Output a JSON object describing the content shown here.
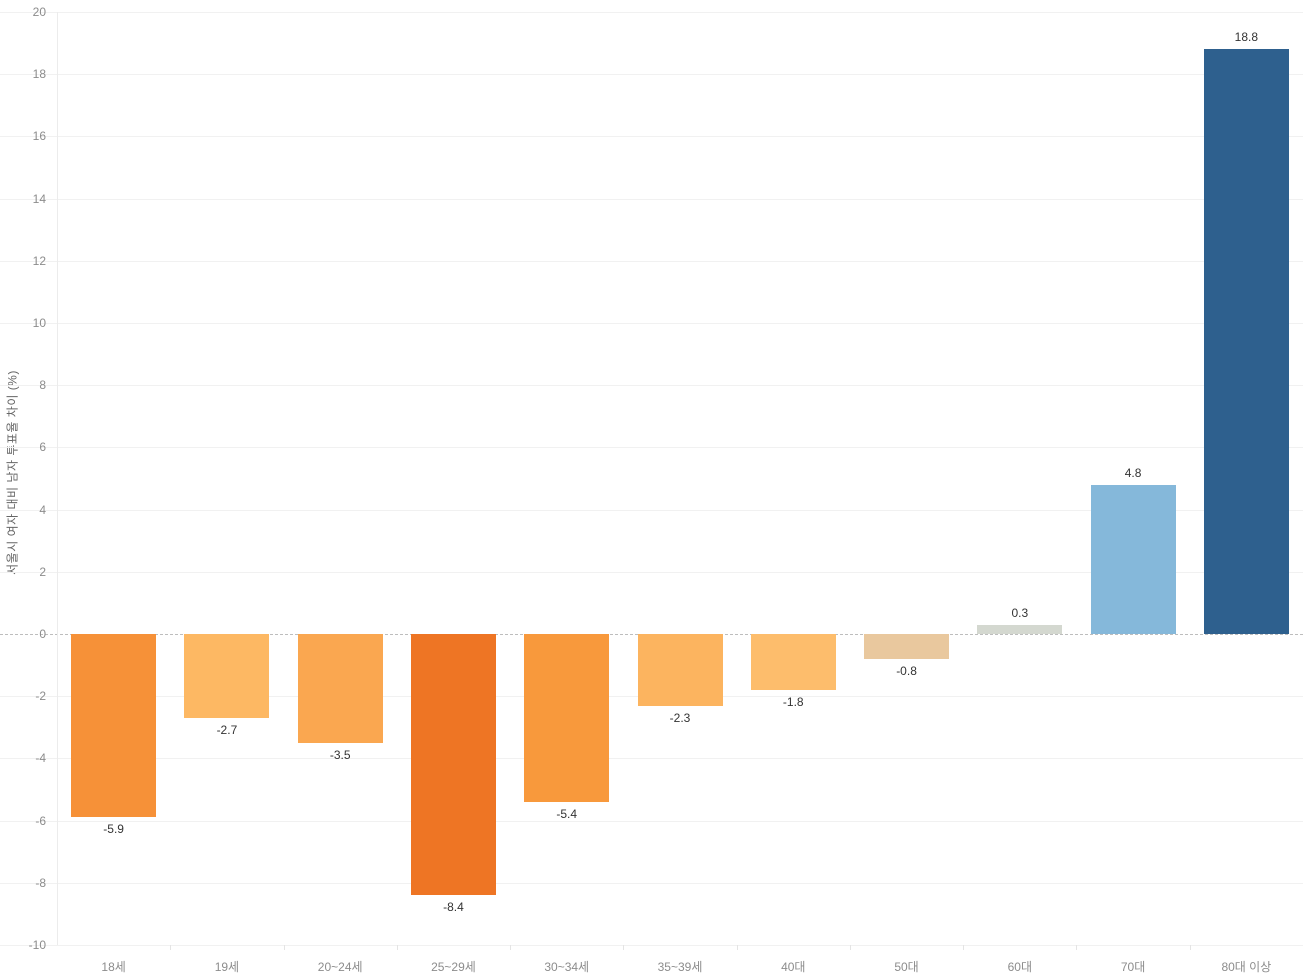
{
  "chart_data": {
    "type": "bar",
    "title": "",
    "xlabel": "",
    "ylabel": "서울시 여자 대비 남자 투표율 차이 (%)",
    "categories": [
      "18세",
      "19세",
      "20~24세",
      "25~29세",
      "30~34세",
      "35~39세",
      "40대",
      "50대",
      "60대",
      "70대",
      "80대 이상"
    ],
    "values": [
      -5.9,
      -2.7,
      -3.5,
      -8.4,
      -5.4,
      -2.3,
      -1.8,
      -0.8,
      0.3,
      4.8,
      18.8
    ],
    "data_labels": [
      "-5.9",
      "-2.7",
      "-3.5",
      "-8.4",
      "-5.4",
      "-2.3",
      "-1.8",
      "-0.8",
      "0.3",
      "4.8",
      "18.8"
    ],
    "bar_colors": [
      "#f69138",
      "#fdb863",
      "#faa750",
      "#ee7524",
      "#f8993c",
      "#fcb45f",
      "#fdbd6c",
      "#e9c89e",
      "#d4d8d0",
      "#85b8da",
      "#2e608e"
    ],
    "ylim": [
      -10,
      20
    ],
    "ytick_step": 2,
    "yticks": [
      -10,
      -8,
      -6,
      -4,
      -2,
      0,
      2,
      4,
      6,
      8,
      10,
      12,
      14,
      16,
      18,
      20
    ],
    "grid": true,
    "zero_line": "dashed",
    "legend_position": "none"
  },
  "style_colors": {
    "background": "#ffffff",
    "gridline": "#f1f1f1",
    "zero_line": "#bdbdbd",
    "axis_line": "#ececec",
    "tick_label": "#8c8c8c",
    "data_label": "#333333",
    "axis_title": "#666666"
  }
}
